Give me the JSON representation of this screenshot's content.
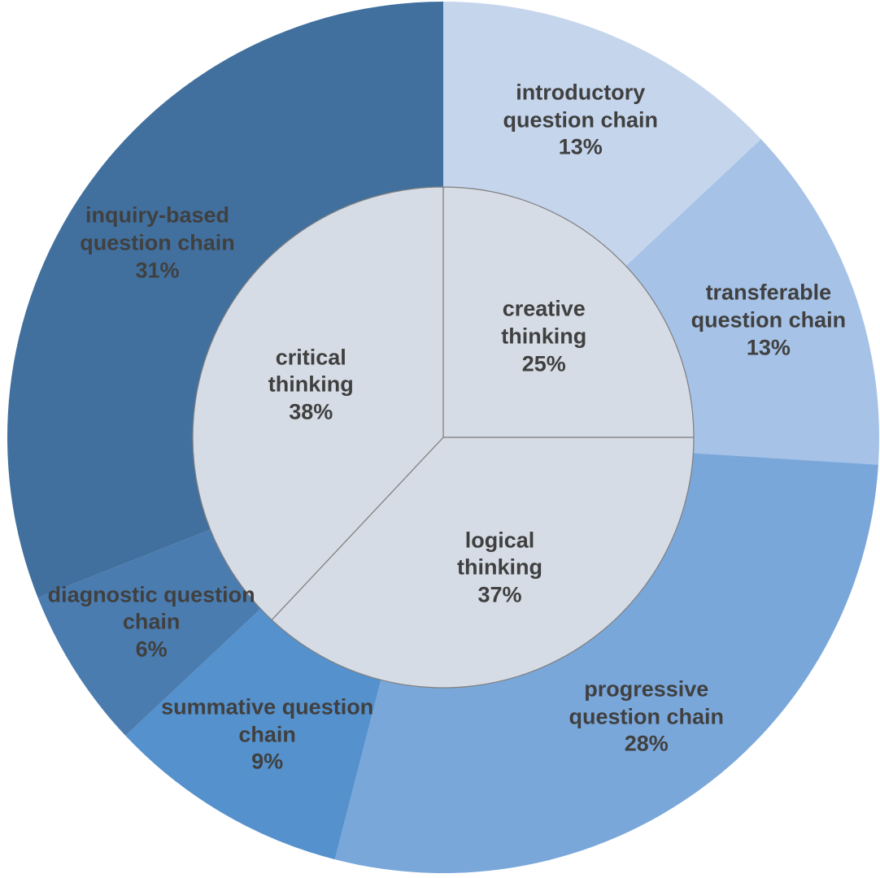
{
  "chart_data": {
    "type": "sunburst",
    "inner": {
      "categories": [
        "creative thinking",
        "logical thinking",
        "critical thinking"
      ],
      "values": [
        25,
        37,
        38
      ],
      "value_labels": [
        "25%",
        "37%",
        "38%"
      ],
      "colors": [
        "#d6dce5",
        "#d6dce5",
        "#d6dce5"
      ]
    },
    "outer": {
      "categories": [
        "introductory question chain",
        "transferable question chain",
        "progressive question chain",
        "summative question chain",
        "diagnostic question chain",
        "inquiry-based question chain"
      ],
      "values": [
        13,
        13,
        28,
        9,
        6,
        31
      ],
      "value_labels": [
        "13%",
        "13%",
        "28%",
        "9%",
        "6%",
        "31%"
      ],
      "colors": [
        "#c5d5ec",
        "#a6c2e6",
        "#7aa7da",
        "#5591cc",
        "#4a7cb0",
        "#41709e"
      ]
    }
  }
}
